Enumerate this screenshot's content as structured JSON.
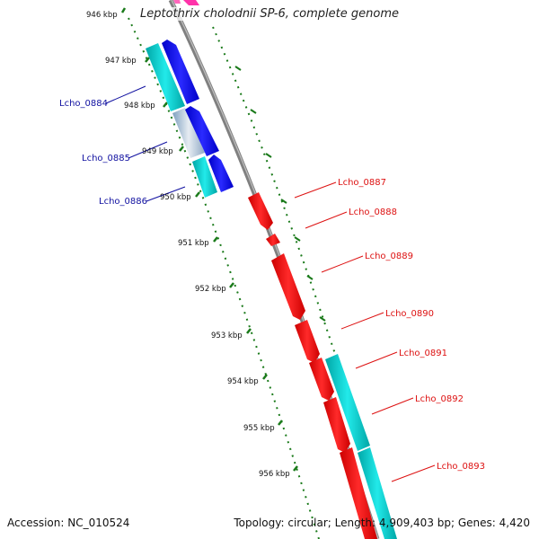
{
  "title": "Leptothrix cholodnii SP-6, complete genome",
  "footer": {
    "accession": "Accession: NC_010524",
    "topology": "Topology: circular; Length: 4,909,403 bp; Genes: 4,420"
  },
  "ticks": [
    "946 kbp",
    "947 kbp",
    "948 kbp",
    "949 kbp",
    "950 kbp",
    "951 kbp",
    "952 kbp",
    "953 kbp",
    "954 kbp",
    "955 kbp",
    "956 kbp"
  ],
  "genes_left": [
    {
      "id": "Lcho_0884",
      "label": "Lcho_0884"
    },
    {
      "id": "Lcho_0885",
      "label": "Lcho_0885"
    },
    {
      "id": "Lcho_0886",
      "label": "Lcho_0886"
    }
  ],
  "genes_right": [
    {
      "id": "Lcho_0887",
      "label": "Lcho_0887"
    },
    {
      "id": "Lcho_0888",
      "label": "Lcho_0888"
    },
    {
      "id": "Lcho_0889",
      "label": "Lcho_0889"
    },
    {
      "id": "Lcho_0890",
      "label": "Lcho_0890"
    },
    {
      "id": "Lcho_0891",
      "label": "Lcho_0891"
    },
    {
      "id": "Lcho_0892",
      "label": "Lcho_0892"
    },
    {
      "id": "Lcho_0893",
      "label": "Lcho_0893"
    }
  ],
  "colors": {
    "forward_cds": "#ff0000",
    "reverse_cds": "#0000ee",
    "forward_rna": "#00c8c8",
    "reverse_rna": "#00c8c8",
    "backbone": "#808080",
    "tick": "#1a7a1a",
    "left_label": "#1010a0",
    "right_label": "#dd1111",
    "magenta": "#ff33aa"
  }
}
